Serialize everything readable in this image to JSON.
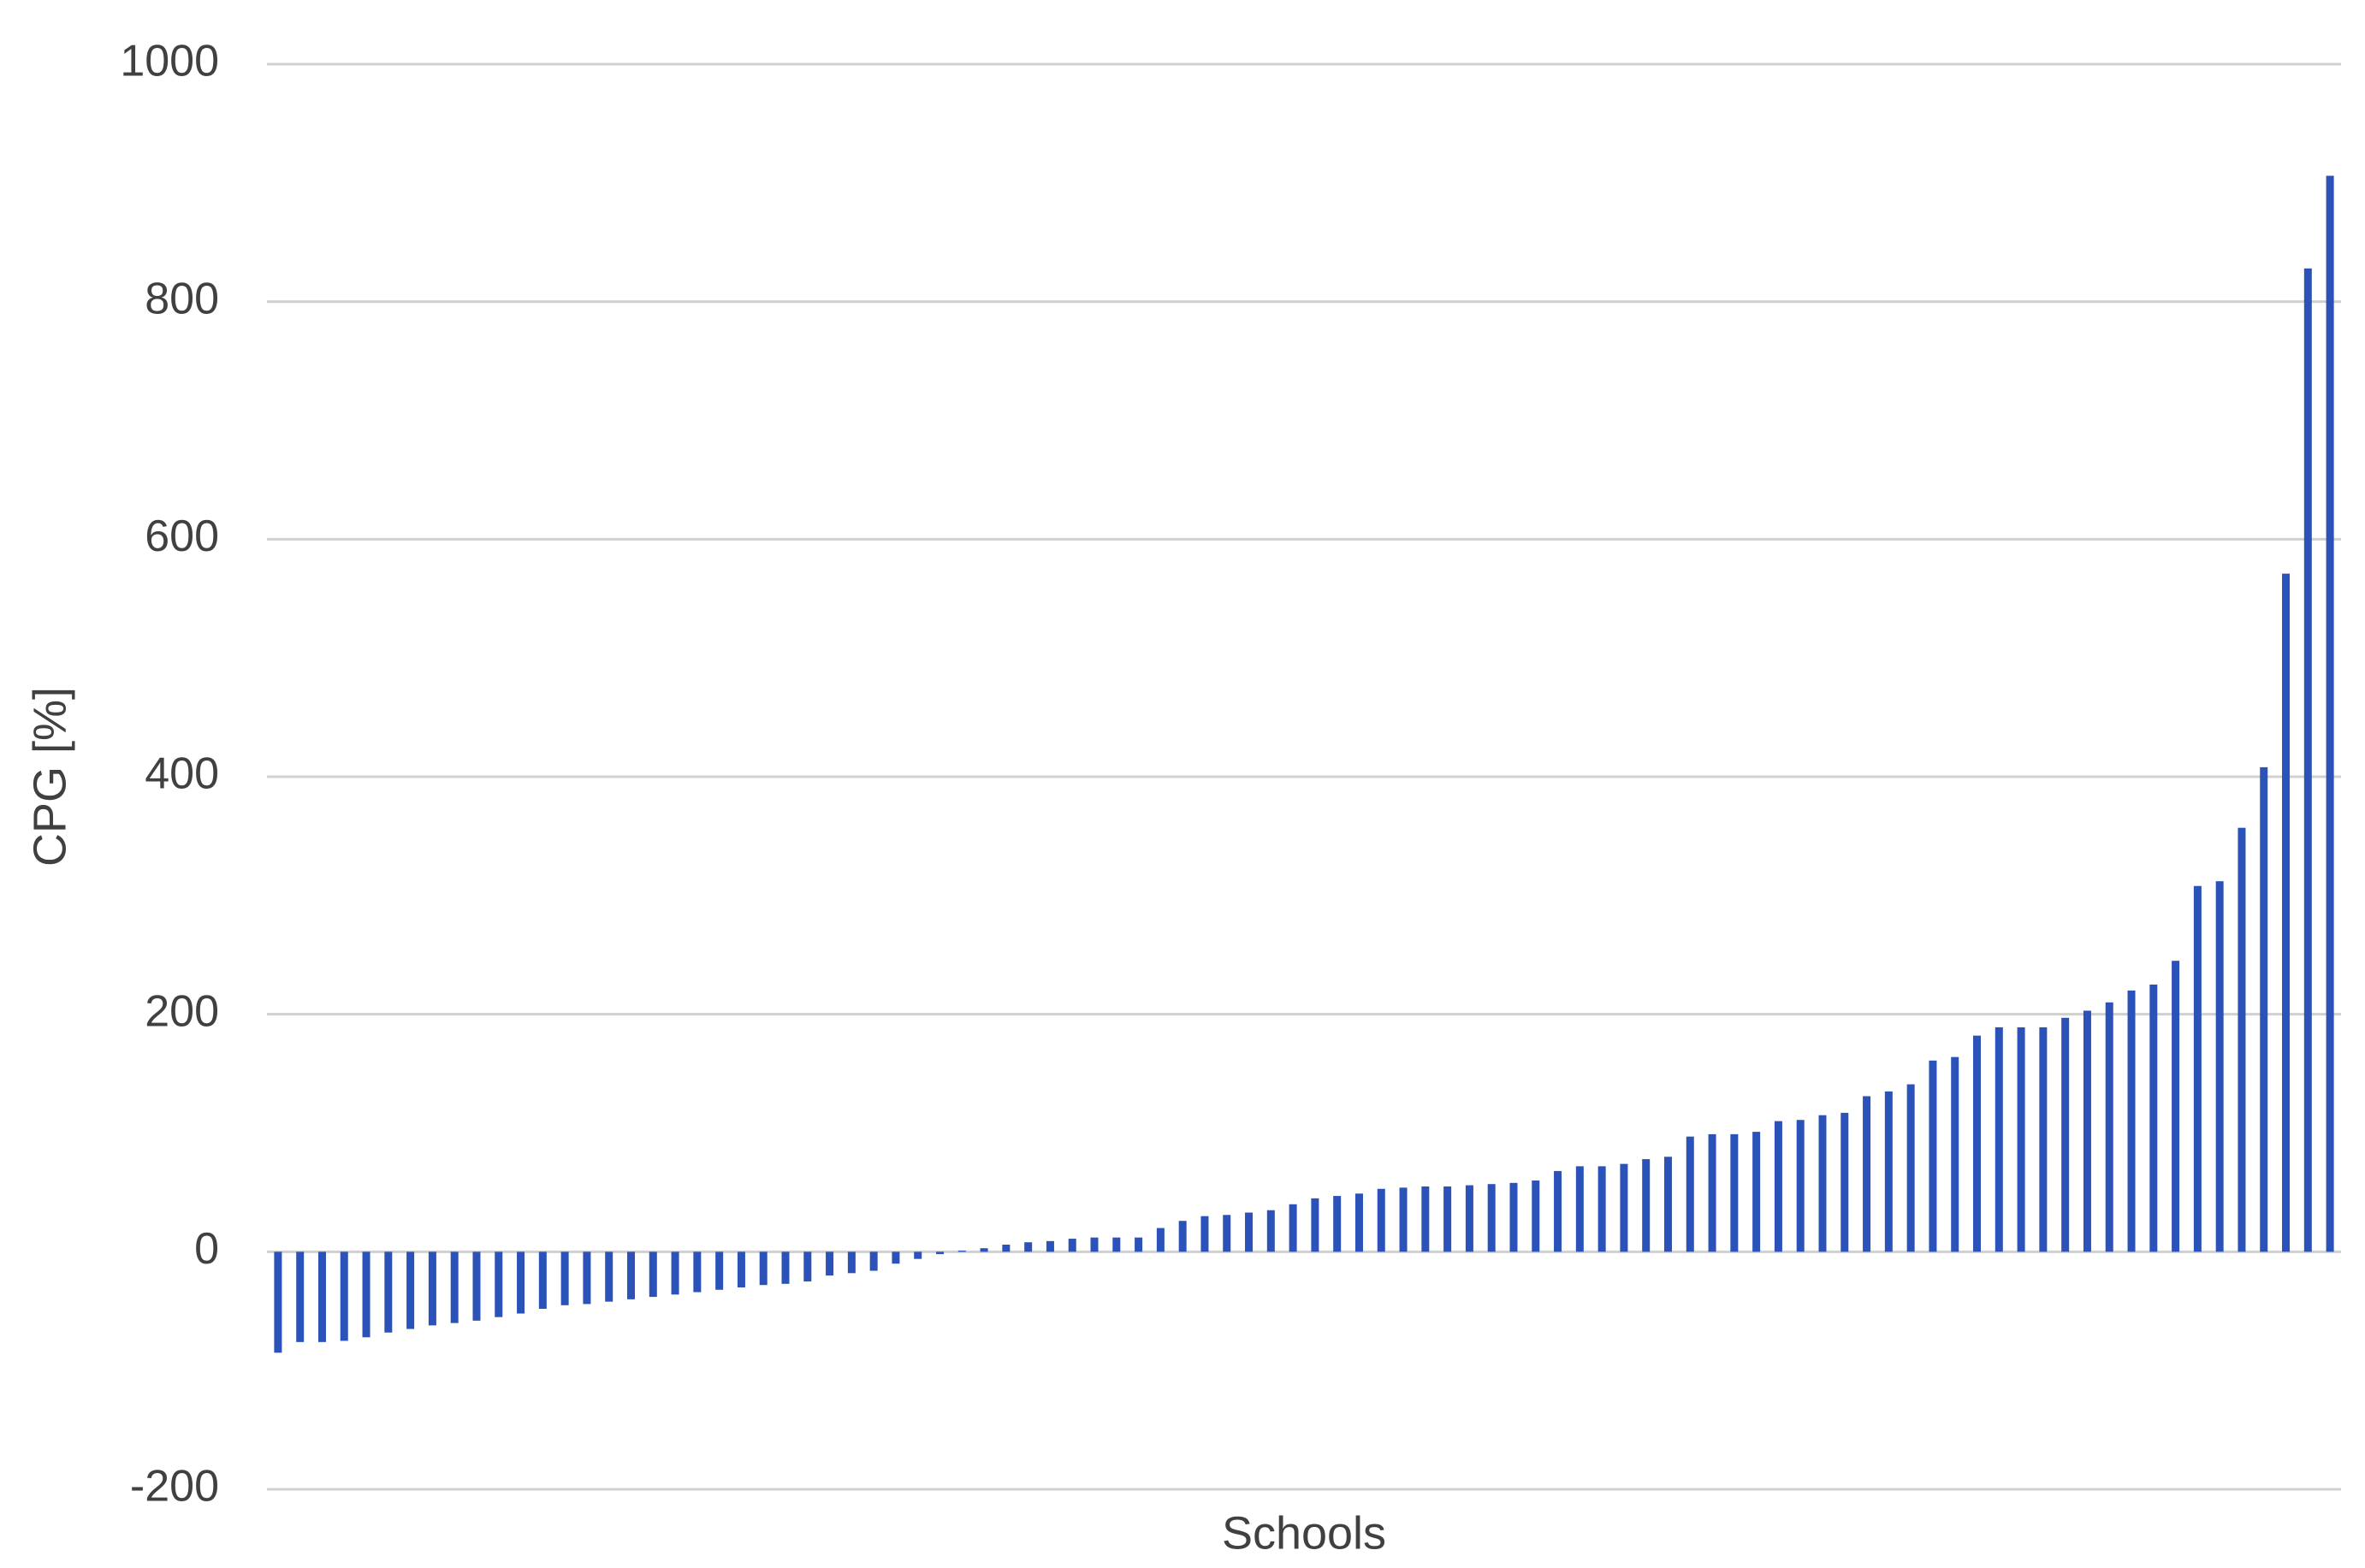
{
  "chart_data": {
    "type": "bar",
    "x_label": "Schools",
    "y_label": "CPG [%]",
    "color": "#2a52b8",
    "grid": true,
    "ylim": [
      -200,
      1000
    ],
    "yticks": [
      -200,
      0,
      200,
      400,
      600,
      800,
      1000
    ],
    "categories": [
      null,
      null,
      null,
      null,
      null,
      null,
      null,
      null,
      null,
      null,
      null,
      null,
      null,
      null,
      null,
      null,
      null,
      null,
      null,
      null,
      null,
      null,
      null,
      null,
      null,
      null,
      null,
      null,
      null,
      null,
      null,
      null,
      null,
      null,
      null,
      null,
      null,
      null,
      null,
      null,
      null,
      null,
      null,
      null,
      null,
      null,
      null,
      null,
      null,
      null,
      null,
      null,
      null,
      null,
      null,
      null,
      null,
      null,
      null,
      null,
      null,
      null,
      null,
      null,
      null,
      null,
      null,
      null,
      null,
      null,
      null,
      null,
      null,
      null,
      null,
      null,
      null,
      null,
      null,
      null,
      null,
      null,
      null,
      null,
      null,
      null,
      null,
      null,
      null,
      null,
      null,
      null,
      null,
      null
    ],
    "values": [
      -85,
      -76,
      -76,
      -75,
      -72,
      -68,
      -65,
      -62,
      -60,
      -58,
      -55,
      -52,
      -48,
      -45,
      -44,
      -42,
      -40,
      -38,
      -36,
      -34,
      -32,
      -30,
      -28,
      -27,
      -25,
      -20,
      -18,
      -16,
      -10,
      -6,
      -2,
      1,
      3,
      6,
      8,
      9,
      11,
      12,
      12,
      12,
      20,
      26,
      30,
      31,
      33,
      35,
      40,
      45,
      47,
      49,
      53,
      54,
      55,
      55,
      56,
      57,
      58,
      60,
      68,
      72,
      72,
      74,
      78,
      80,
      97,
      99,
      99,
      101,
      110,
      111,
      115,
      117,
      131,
      135,
      141,
      161,
      164,
      182,
      189,
      189,
      189,
      197,
      203,
      210,
      220,
      225,
      245,
      308,
      312,
      357,
      408,
      571,
      828,
      906
    ]
  }
}
